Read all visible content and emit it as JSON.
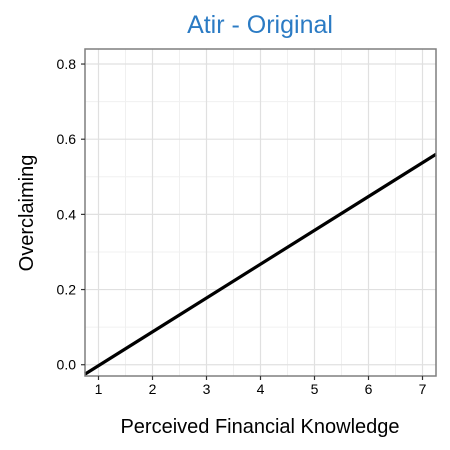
{
  "colors": {
    "title": "#2b7bc4",
    "line": "#000000",
    "grid_major": "#e0e0e0",
    "grid_minor": "#f0f0f0",
    "panel_border": "#7f7f7f",
    "background": "#ffffff"
  },
  "chart_data": {
    "type": "line",
    "title": "Atir - Original",
    "xlabel": "Perceived Financial Knowledge",
    "ylabel": "Overclaiming",
    "xlim": [
      0.75,
      7.25
    ],
    "ylim": [
      -0.03,
      0.84
    ],
    "x_ticks": [
      1,
      2,
      3,
      4,
      5,
      6,
      7
    ],
    "y_ticks": [
      0.0,
      0.2,
      0.4,
      0.6,
      0.8
    ],
    "x_tick_labels": [
      "1",
      "2",
      "3",
      "4",
      "5",
      "6",
      "7"
    ],
    "y_tick_labels": [
      "0.0",
      "0.2",
      "0.4",
      "0.6",
      "0.8"
    ],
    "grid": true,
    "legend": "none",
    "series": [
      {
        "x": [
          0.75,
          7.25
        ],
        "y": [
          -0.025,
          0.56
        ]
      }
    ]
  }
}
